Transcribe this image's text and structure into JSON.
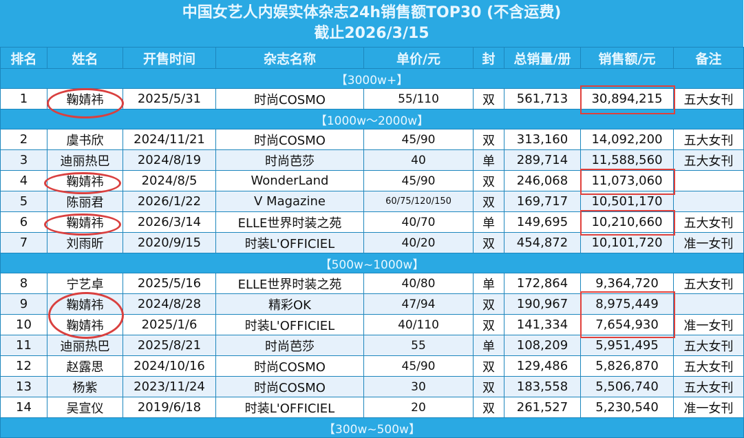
{
  "title": "中国女艺人内娱实体杂志24h销售额TOP30 (不含运费)",
  "subtitle": "截止2026/3/15",
  "headers": [
    "排名",
    "姓名",
    "开售时间",
    "杂志名称",
    "单价/元",
    "封",
    "总销量/册",
    "销售额/元",
    "备注"
  ],
  "sections": [
    {
      "label": "【3000w+】",
      "rows": [
        [
          "1",
          "鞠婧祎",
          "2025/5/31",
          "时尚COSMO",
          "55/110",
          "双",
          "561,713",
          "30,894,215",
          "五大女刊"
        ]
      ]
    },
    {
      "label": "【1000w～2000w】",
      "rows": [
        [
          "2",
          "虞书欣",
          "2024/11/21",
          "时尚COSMO",
          "45/90",
          "双",
          "313,160",
          "14,092,200",
          "五大女刊"
        ],
        [
          "3",
          "迪丽热巴",
          "2024/8/19",
          "时尚芭莎",
          "40",
          "单",
          "289,714",
          "11,588,560",
          "五大女刊"
        ],
        [
          "4",
          "鞠婧祎",
          "2024/8/5",
          "WonderLand",
          "45/90",
          "双",
          "246,068",
          "11,073,060",
          ""
        ],
        [
          "5",
          "陈丽君",
          "2026/1/22",
          "V Magazine",
          "60/75/120/150",
          "双",
          "169,717",
          "10,501,170",
          ""
        ],
        [
          "6",
          "鞠婧祎",
          "2026/3/14",
          "ELLE世界时装之苑",
          "40/70",
          "单",
          "149,695",
          "10,210,660",
          "五大女刊"
        ],
        [
          "7",
          "刘雨昕",
          "2020/9/15",
          "时装L'OFFICIEL",
          "40/20",
          "双",
          "454,872",
          "10,101,720",
          "准一女刊"
        ]
      ]
    },
    {
      "label": "【500w~1000w】",
      "rows": [
        [
          "8",
          "宁艺卓",
          "2025/5/16",
          "ELLE世界时装之苑",
          "40/80",
          "单",
          "172,864",
          "9,364,720",
          "五大女刊"
        ],
        [
          "9",
          "鞠婧祎",
          "2024/8/28",
          "精彩OK",
          "47/94",
          "双",
          "190,967",
          "8,975,449",
          ""
        ],
        [
          "10",
          "鞠婧祎",
          "2025/1/6",
          "时装L'OFFICIEL",
          "40/110",
          "双",
          "141,334",
          "7,654,930",
          "准一女刊"
        ],
        [
          "11",
          "迪丽热巴",
          "2025/8/21",
          "时尚芭莎",
          "55",
          "单",
          "108,209",
          "5,951,495",
          "五大女刊"
        ],
        [
          "12",
          "赵露思",
          "2024/10/16",
          "时尚COSMO",
          "45/90",
          "双",
          "129,486",
          "5,826,870",
          "五大女刊"
        ],
        [
          "13",
          "杨紫",
          "2023/11/24",
          "时尚COSMO",
          "30",
          "双",
          "183,558",
          "5,506,740",
          "五大女刊"
        ],
        [
          "14",
          "吴宣仪",
          "2019/6/18",
          "时装L'OFFICIEL",
          "20",
          "双",
          "261,527",
          "5,230,540",
          "准一女刊"
        ]
      ]
    },
    {
      "label": "【300w~500w】",
      "rows": []
    }
  ],
  "colors": {
    "header_bg": "#2aa9e3",
    "highlight": "#d9403f"
  }
}
